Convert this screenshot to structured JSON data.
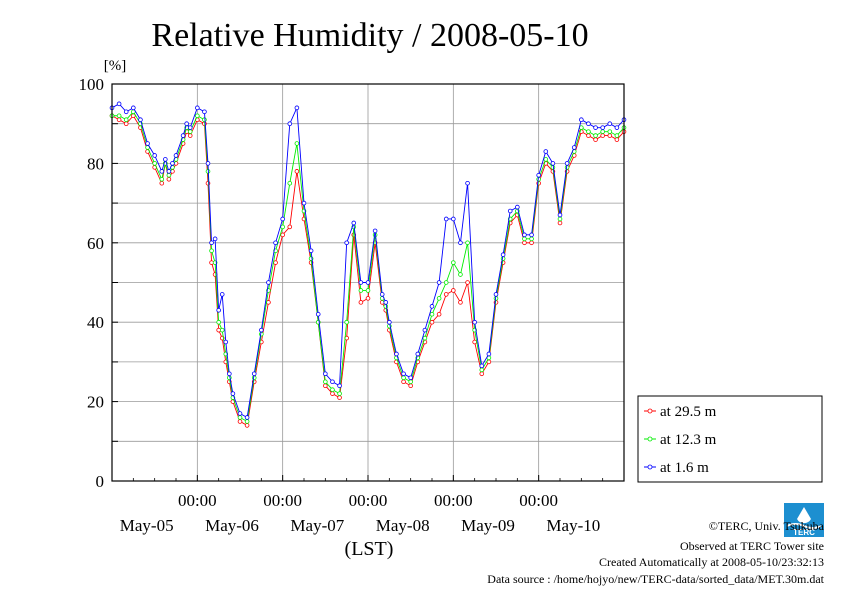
{
  "title": "Relative Humidity / 2008-05-10",
  "y_unit": "[%]",
  "x_axis_label": "(LST)",
  "footer": {
    "copyright": "©TERC, Univ. Tsukuba",
    "observed": "Observed at TERC Tower site",
    "created": "Created Automatically at 2008-05-10/23:32:13",
    "source": "Data source : /home/hojyo/new/TERC-data/sorted_data/MET.30m.dat"
  },
  "logo_text": "TERC",
  "chart_data": {
    "type": "line",
    "title": "Relative Humidity / 2008-05-10",
    "ylabel": "[%]",
    "xlabel": "(LST)",
    "ylim": [
      0,
      100
    ],
    "xlim": [
      0,
      144
    ],
    "x_unit": "hours from 2008-05-05 00:00 LST",
    "y_ticks": [
      "0",
      "20",
      "40",
      "60",
      "80",
      "100"
    ],
    "x_tick_labels": [
      "00:00",
      "00:00",
      "00:00",
      "00:00",
      "00:00"
    ],
    "date_labels": [
      "May-05",
      "May-06",
      "May-07",
      "May-08",
      "May-09",
      "May-10"
    ],
    "grid": true,
    "legend_position": "right, bottom",
    "series": [
      {
        "name": "at 29.5 m",
        "color": "#ff0000",
        "x": [
          0,
          2,
          4,
          6,
          8,
          10,
          12,
          14,
          15,
          16,
          17,
          18,
          20,
          21,
          22,
          24,
          26,
          27,
          28,
          29,
          30,
          31,
          32,
          33,
          34,
          36,
          38,
          40,
          42,
          44,
          46,
          48,
          50,
          52,
          54,
          56,
          58,
          60,
          62,
          64,
          66,
          68,
          70,
          72,
          74,
          76,
          77,
          78,
          80,
          82,
          84,
          86,
          88,
          90,
          92,
          94,
          96,
          98,
          100,
          102,
          104,
          106,
          108,
          110,
          112,
          114,
          116,
          118,
          120,
          122,
          124,
          126,
          128,
          130,
          132,
          134,
          136,
          138,
          140,
          142,
          144
        ],
        "values": [
          92,
          91,
          90,
          92,
          89,
          83,
          79,
          75,
          80,
          76,
          78,
          80,
          85,
          88,
          87,
          91,
          90,
          75,
          55,
          52,
          38,
          36,
          30,
          25,
          20,
          15,
          14,
          25,
          35,
          45,
          55,
          62,
          64,
          78,
          66,
          55,
          40,
          24,
          22,
          21,
          36,
          62,
          45,
          46,
          60,
          45,
          43,
          38,
          30,
          25,
          24,
          30,
          35,
          40,
          42,
          47,
          48,
          45,
          50,
          35,
          27,
          30,
          45,
          55,
          65,
          67,
          60,
          60,
          75,
          80,
          78,
          65,
          78,
          82,
          88,
          87,
          86,
          87,
          87,
          86,
          88
        ]
      },
      {
        "name": "at 12.3 m",
        "color": "#00ee00",
        "x": [
          0,
          2,
          4,
          6,
          8,
          10,
          12,
          14,
          15,
          16,
          17,
          18,
          20,
          21,
          22,
          24,
          26,
          27,
          28,
          29,
          30,
          31,
          32,
          33,
          34,
          36,
          38,
          40,
          42,
          44,
          46,
          48,
          50,
          52,
          54,
          56,
          58,
          60,
          62,
          64,
          66,
          68,
          70,
          72,
          74,
          76,
          77,
          78,
          80,
          82,
          84,
          86,
          88,
          90,
          92,
          94,
          96,
          98,
          100,
          102,
          104,
          106,
          108,
          110,
          112,
          114,
          116,
          118,
          120,
          122,
          124,
          126,
          128,
          130,
          132,
          134,
          136,
          138,
          140,
          142,
          144
        ],
        "values": [
          92,
          92,
          91,
          93,
          90,
          84,
          80,
          76,
          80,
          77,
          79,
          81,
          86,
          89,
          88,
          92,
          91,
          78,
          58,
          55,
          40,
          38,
          32,
          26,
          21,
          16,
          15,
          26,
          37,
          48,
          58,
          64,
          75,
          85,
          68,
          56,
          40,
          25,
          23,
          22,
          40,
          64,
          48,
          48,
          62,
          46,
          44,
          39,
          31,
          26,
          25,
          31,
          36,
          42,
          46,
          50,
          55,
          52,
          60,
          38,
          28,
          31,
          46,
          56,
          66,
          68,
          61,
          61,
          76,
          81,
          79,
          66,
          79,
          83,
          89,
          88,
          87,
          88,
          88,
          87,
          89
        ]
      },
      {
        "name": "at 1.6 m",
        "color": "#0000ff",
        "x": [
          0,
          2,
          4,
          6,
          8,
          10,
          12,
          14,
          15,
          16,
          17,
          18,
          20,
          21,
          22,
          24,
          26,
          27,
          28,
          29,
          30,
          31,
          32,
          33,
          34,
          36,
          38,
          40,
          42,
          44,
          46,
          48,
          50,
          52,
          54,
          56,
          58,
          60,
          62,
          64,
          66,
          68,
          70,
          72,
          74,
          76,
          77,
          78,
          80,
          82,
          84,
          86,
          88,
          90,
          92,
          94,
          96,
          98,
          100,
          102,
          104,
          106,
          108,
          110,
          112,
          114,
          116,
          118,
          120,
          122,
          124,
          126,
          128,
          130,
          132,
          134,
          136,
          138,
          140,
          142,
          144
        ],
        "values": [
          94,
          95,
          93,
          94,
          91,
          85,
          82,
          78,
          81,
          78,
          80,
          82,
          87,
          90,
          89,
          94,
          93,
          80,
          60,
          61,
          43,
          47,
          35,
          27,
          22,
          17,
          16,
          27,
          38,
          50,
          60,
          66,
          90,
          94,
          70,
          58,
          42,
          27,
          25,
          24,
          60,
          65,
          50,
          50,
          63,
          47,
          45,
          40,
          32,
          27,
          26,
          32,
          38,
          44,
          50,
          66,
          66,
          60,
          75,
          40,
          29,
          32,
          47,
          57,
          68,
          69,
          62,
          62,
          77,
          83,
          80,
          67,
          80,
          84,
          91,
          90,
          89,
          89,
          90,
          89,
          91
        ]
      }
    ]
  }
}
